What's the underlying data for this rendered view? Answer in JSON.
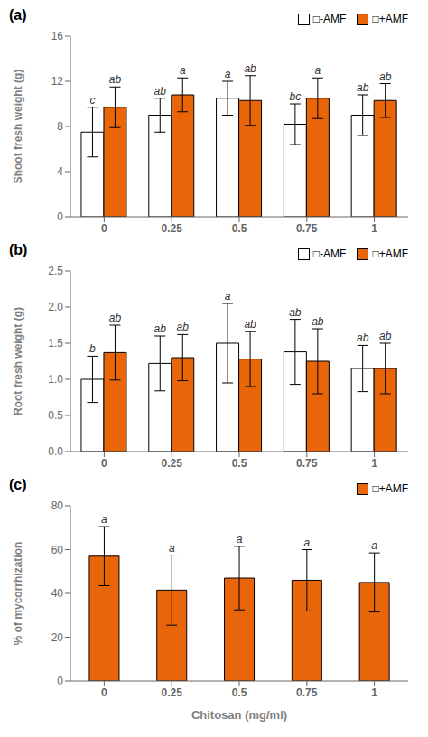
{
  "chart_data": [
    {
      "type": "bar",
      "title": "(a)",
      "ylabel": "Shoot fresh weight (g)",
      "categories": [
        "0",
        "0.25",
        "0.5",
        "0.75",
        "1"
      ],
      "ylim": [
        0,
        16
      ],
      "yticks": [
        0,
        4,
        8,
        12,
        16
      ],
      "grid": false,
      "legend": "upper right",
      "series": [
        {
          "name": "□-AMF",
          "color": "#FFFFFF",
          "values": [
            7.5,
            9.0,
            10.5,
            8.2,
            9.0
          ],
          "error": [
            2.2,
            1.5,
            1.5,
            1.8,
            1.8
          ],
          "annotations": [
            "c",
            "ab",
            "a",
            "bc",
            "ab"
          ]
        },
        {
          "name": "□+AMF",
          "color": "#E8650A",
          "values": [
            9.7,
            10.8,
            10.3,
            10.5,
            10.3
          ],
          "error": [
            1.8,
            1.5,
            2.2,
            1.8,
            1.5
          ],
          "annotations": [
            "ab",
            "a",
            "ab",
            "a",
            "ab"
          ]
        }
      ]
    },
    {
      "type": "bar",
      "title": "(b)",
      "ylabel": "Root fresh weight (g)",
      "categories": [
        "0",
        "0.25",
        "0.5",
        "0.75",
        "1"
      ],
      "ylim": [
        0.0,
        2.5
      ],
      "yticks": [
        {
          "value": 0,
          "label": "0.0"
        },
        0.5,
        {
          "value": 1,
          "label": "1.0"
        },
        1.5,
        {
          "value": 2,
          "label": "2.0"
        },
        2.5
      ],
      "grid": false,
      "legend": "upper right",
      "series": [
        {
          "name": "□-AMF",
          "color": "#FFFFFF",
          "values": [
            1.0,
            1.22,
            1.5,
            1.38,
            1.15
          ],
          "error": [
            0.32,
            0.38,
            0.55,
            0.45,
            0.32
          ],
          "annotations": [
            "b",
            "ab",
            "a",
            "ab",
            "ab"
          ]
        },
        {
          "name": "□+AMF",
          "color": "#E8650A",
          "values": [
            1.37,
            1.3,
            1.28,
            1.25,
            1.15
          ],
          "error": [
            0.38,
            0.32,
            0.38,
            0.45,
            0.35
          ],
          "annotations": [
            "ab",
            "ab",
            "ab",
            "ab",
            "ab"
          ]
        }
      ]
    },
    {
      "type": "bar",
      "title": "(c)",
      "ylabel": "% of mycorrhization",
      "xlabel": "Chitosan (mg/ml)",
      "categories": [
        "0",
        "0.25",
        "0.5",
        "0.75",
        "1"
      ],
      "ylim": [
        0,
        80
      ],
      "yticks": [
        0,
        20,
        40,
        60,
        80
      ],
      "grid": false,
      "legend": "upper right",
      "series": [
        {
          "name": "□+AMF",
          "color": "#E8650A",
          "values": [
            57.0,
            41.5,
            47.0,
            46.0,
            45.0
          ],
          "error": [
            13.5,
            16.0,
            14.5,
            14.0,
            13.5
          ],
          "annotations": [
            "a",
            "a",
            "a",
            "a",
            "a"
          ]
        }
      ]
    }
  ]
}
